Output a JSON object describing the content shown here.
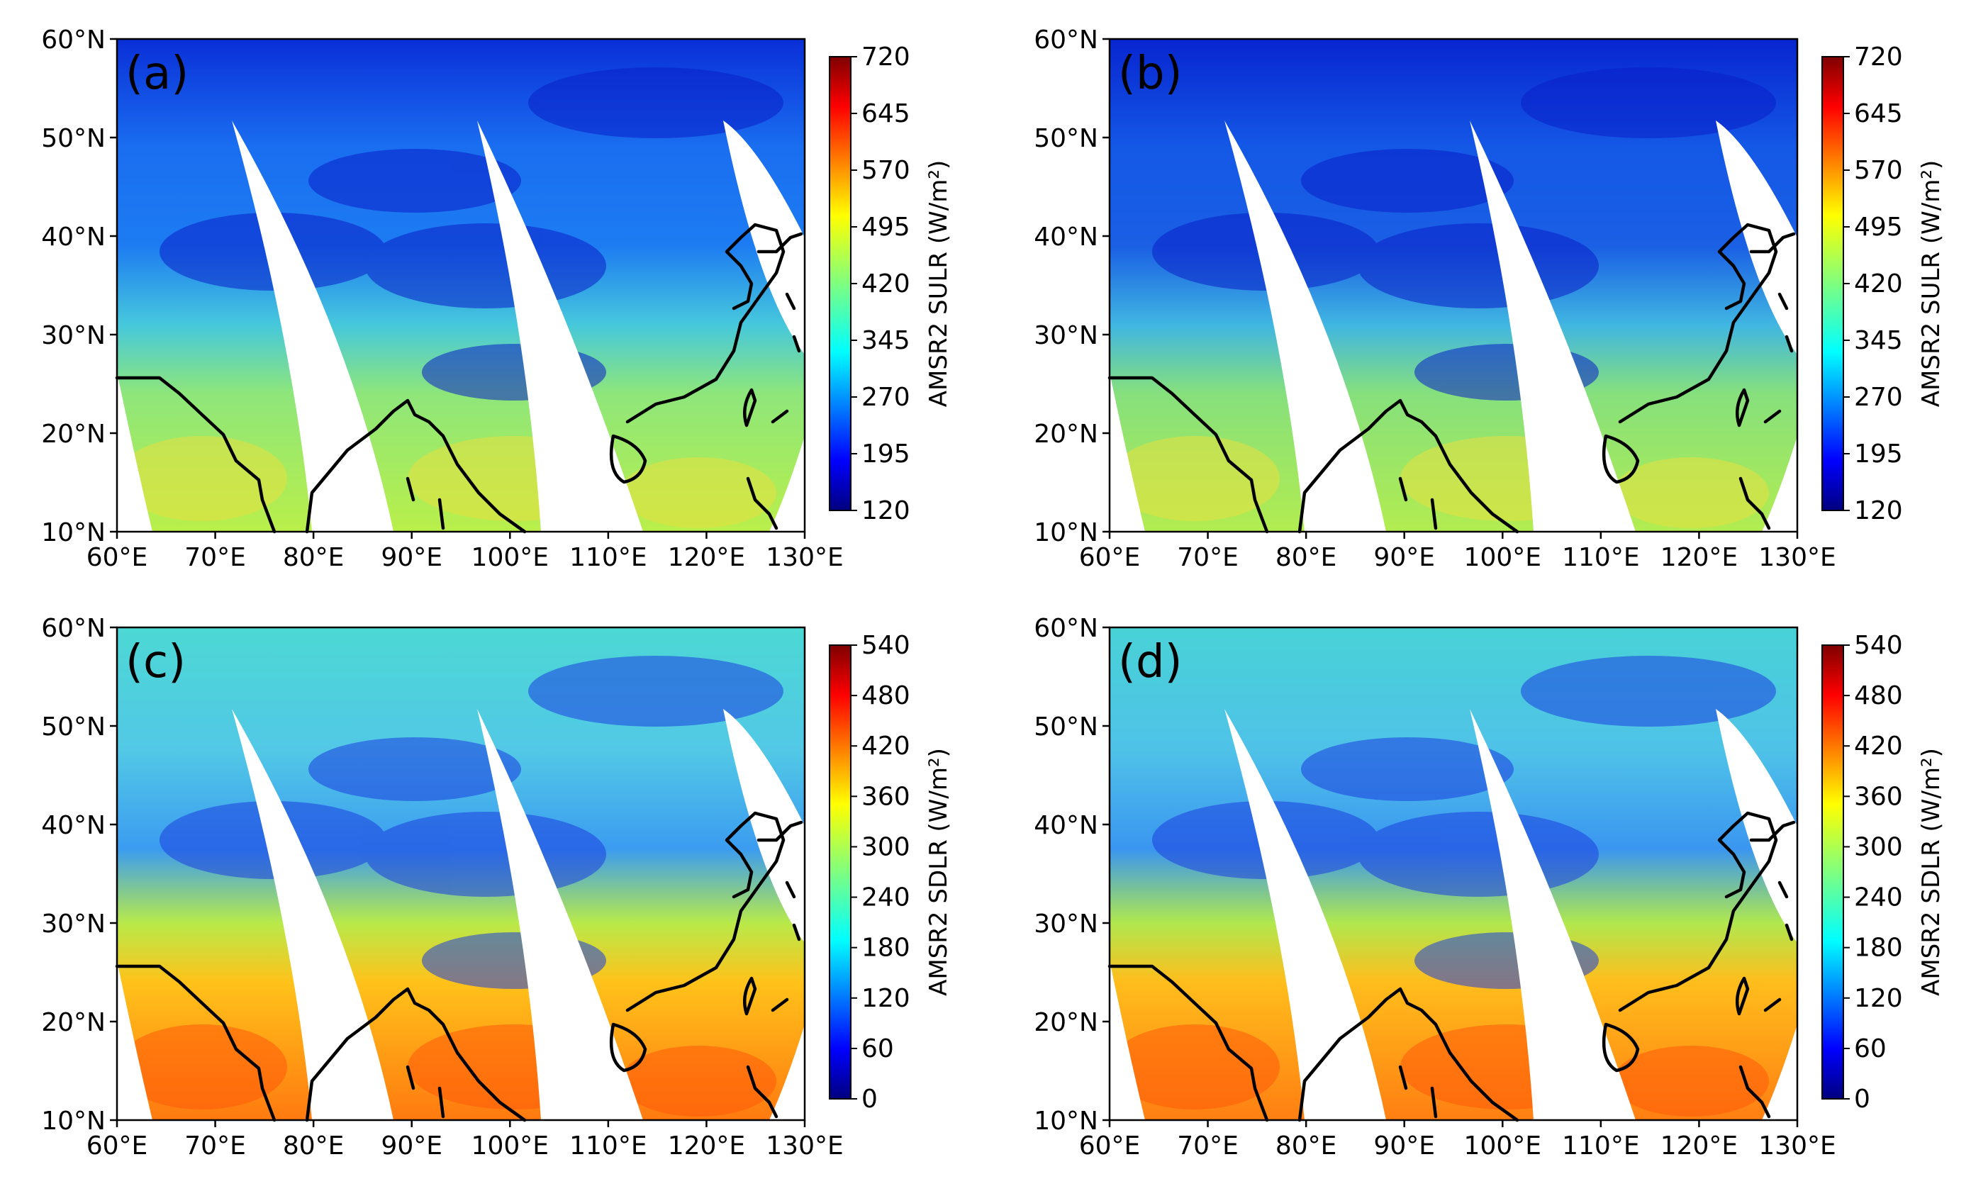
{
  "figure": {
    "x_ticks": [
      "60°E",
      "70°E",
      "80°E",
      "90°E",
      "100°E",
      "110°E",
      "120°E",
      "130°E"
    ],
    "y_ticks": [
      "60°N",
      "50°N",
      "40°N",
      "30°N",
      "20°N",
      "10°N"
    ],
    "panels": [
      {
        "label": "(a)",
        "variable": "SULR",
        "colorbar_label": "AMSR2 SULR (W/m²)",
        "colorbar_ticks": [
          "720",
          "645",
          "570",
          "495",
          "420",
          "345",
          "270",
          "195",
          "120"
        ]
      },
      {
        "label": "(b)",
        "variable": "SULR",
        "colorbar_label": "AMSR2 SULR (W/m²)",
        "colorbar_ticks": [
          "720",
          "645",
          "570",
          "495",
          "420",
          "345",
          "270",
          "195",
          "120"
        ]
      },
      {
        "label": "(c)",
        "variable": "SDLR",
        "colorbar_label": "AMSR2 SDLR (W/m²)",
        "colorbar_ticks": [
          "540",
          "480",
          "420",
          "360",
          "300",
          "240",
          "180",
          "120",
          "60",
          "0"
        ]
      },
      {
        "label": "(d)",
        "variable": "SDLR",
        "colorbar_label": "AMSR2 SDLR (W/m²)",
        "colorbar_ticks": [
          "540",
          "480",
          "420",
          "360",
          "300",
          "240",
          "180",
          "120",
          "60",
          "0"
        ]
      }
    ],
    "colors": {
      "jet": [
        "#00007f",
        "#0000ff",
        "#007fff",
        "#00ffff",
        "#7fff7f",
        "#ffff00",
        "#ff7f00",
        "#ff0000",
        "#7f0000"
      ]
    }
  }
}
